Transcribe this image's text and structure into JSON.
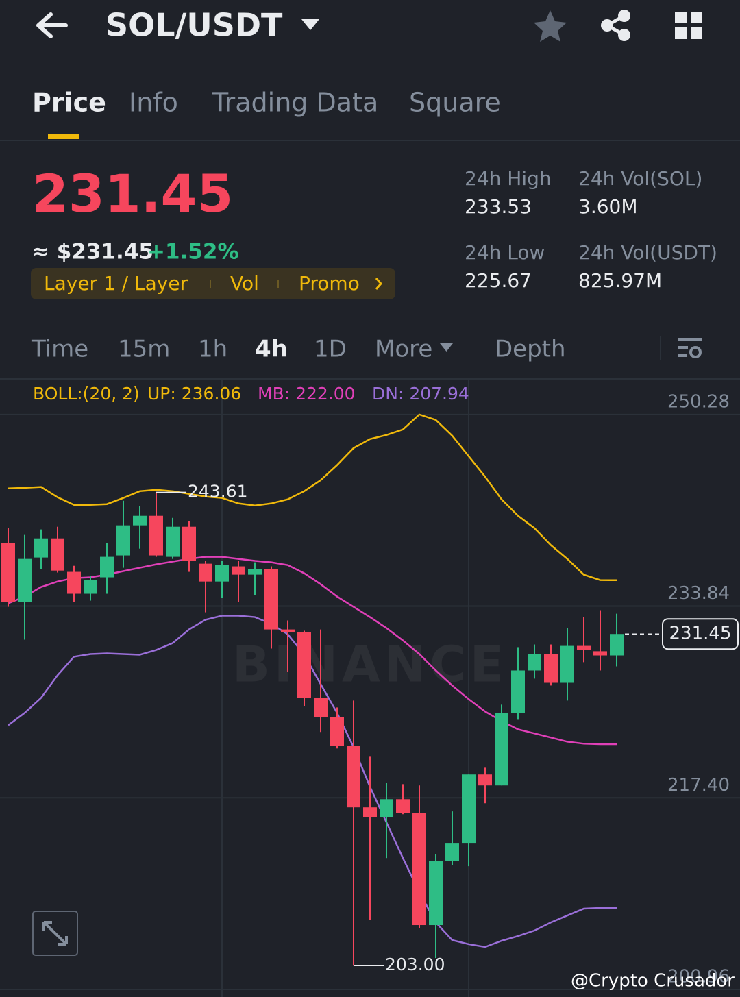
{
  "header": {
    "title": "SOL/USDT"
  },
  "tabs": [
    "Price",
    "Info",
    "Trading Data",
    "Square"
  ],
  "ticker": {
    "price": "231.45",
    "price_approx": "≈ $231.45",
    "change": "+1.52%",
    "tags": [
      "Layer 1 / Layer",
      "Vol",
      "Promo"
    ],
    "stats": [
      {
        "label": "24h High",
        "value": "233.53"
      },
      {
        "label": "24h Vol(SOL)",
        "value": "3.60M"
      },
      {
        "label": "24h Low",
        "value": "225.67"
      },
      {
        "label": "24h Vol(USDT)",
        "value": "825.97M"
      }
    ]
  },
  "intervals": [
    "Time",
    "15m",
    "1h",
    "4h",
    "1D",
    "More",
    "Depth"
  ],
  "chart_data": {
    "type": "candlestick",
    "indicator_labels": [
      {
        "text": "BOLL:(20, 2)",
        "color": "#f0b90b"
      },
      {
        "text": "UP: 236.06",
        "color": "#f0b90b"
      },
      {
        "text": "MB: 222.00",
        "color": "#e040b8"
      },
      {
        "text": "DN: 207.94",
        "color": "#9a6fd8"
      }
    ],
    "ylim": [
      200.31,
      253.27
    ],
    "yticks": [
      250.28,
      233.84,
      {
        "value": 217.4,
        "label": "217.40"
      },
      200.96
    ],
    "candles": {
      "up_color": "#2ebd85",
      "down_color": "#f6465d",
      "open": [
        239.24,
        234.19,
        238.01,
        239.65,
        236.78,
        234.9,
        236.31,
        238.19,
        240.77,
        241.59,
        238.07,
        240.65,
        237.48,
        235.95,
        237.25,
        236.54,
        237.01,
        231.84,
        231.61,
        225.97,
        224.33,
        221.86,
        216.58,
        215.76,
        217.28,
        216.11,
        206.48,
        212.0,
        213.53,
        219.4,
        218.46,
        224.68,
        228.32,
        229.73,
        227.26,
        230.43,
        229.97,
        229.61
      ],
      "high": [
        240.53,
        239.95,
        240.42,
        240.65,
        237.3,
        236.42,
        239.24,
        242.88,
        242.41,
        243.61,
        241.41,
        241.12,
        237.72,
        237.72,
        237.72,
        237.6,
        237.25,
        232.61,
        231.73,
        231.84,
        225.15,
        225.74,
        220.92,
        218.69,
        218.57,
        218.46,
        212.59,
        216.23,
        219.4,
        219.98,
        225.39,
        230.32,
        230.55,
        230.55,
        231.96,
        232.9,
        233.49,
        233.19
      ],
      "low": [
        233.78,
        230.96,
        237.01,
        236.72,
        234.19,
        234.31,
        234.9,
        237.13,
        238.77,
        238.07,
        237.89,
        236.78,
        233.31,
        234.55,
        234.19,
        234.78,
        230.2,
        228.2,
        225.27,
        223.04,
        221.63,
        203.0,
        206.95,
        212.23,
        215.99,
        206.19,
        203.66,
        211.65,
        211.53,
        216.93,
        218.46,
        224.09,
        227.62,
        227.03,
        225.74,
        229.03,
        228.32,
        228.67
      ],
      "close": [
        234.19,
        237.89,
        239.65,
        236.89,
        234.9,
        236.07,
        238.07,
        240.77,
        241.59,
        238.19,
        240.65,
        237.72,
        235.95,
        237.36,
        236.54,
        237.01,
        231.84,
        231.61,
        225.97,
        224.33,
        221.86,
        216.58,
        215.76,
        217.28,
        216.11,
        206.48,
        212.0,
        213.53,
        219.4,
        218.46,
        224.68,
        228.32,
        229.73,
        227.26,
        230.43,
        230.08,
        229.61,
        231.45
      ]
    },
    "bands": [
      {
        "color": "#f0b90b",
        "values": [
          243.94,
          243.99,
          244.06,
          243.18,
          242.53,
          242.53,
          242.59,
          243.12,
          243.7,
          243.82,
          243.7,
          243.47,
          243.24,
          243.12,
          242.65,
          242.47,
          242.65,
          243.0,
          243.7,
          244.64,
          245.94,
          247.4,
          248.17,
          248.52,
          248.99,
          250.28,
          249.81,
          248.46,
          246.7,
          244.94,
          243.0,
          241.59,
          240.53,
          239.07,
          237.89,
          236.54,
          236.07,
          236.06
        ]
      },
      {
        "color": "#e040b8",
        "values": [
          234.08,
          234.66,
          235.48,
          235.95,
          236.25,
          236.31,
          236.54,
          236.84,
          237.13,
          237.42,
          237.66,
          237.89,
          238.07,
          238.07,
          237.89,
          237.72,
          237.6,
          237.36,
          236.66,
          235.72,
          234.66,
          233.78,
          232.9,
          231.96,
          230.9,
          229.73,
          228.32,
          227.03,
          225.86,
          224.8,
          223.98,
          223.27,
          222.92,
          222.57,
          222.21,
          222.04,
          222.0,
          222.0
        ]
      },
      {
        "color": "#9a6fd8",
        "values": [
          223.62,
          224.68,
          225.97,
          227.91,
          229.5,
          229.73,
          229.79,
          229.73,
          229.67,
          230.08,
          230.67,
          231.84,
          232.67,
          233.02,
          233.02,
          232.9,
          232.31,
          231.43,
          229.67,
          227.15,
          224.68,
          221.75,
          218.34,
          215.29,
          212.23,
          209.3,
          206.71,
          205.19,
          204.84,
          204.6,
          205.13,
          205.54,
          206.01,
          206.71,
          207.3,
          207.89,
          207.95,
          207.94
        ]
      }
    ],
    "annotations": {
      "high": "243.61",
      "low": "203.00",
      "last": "231.45"
    },
    "watermark": "BINANCE",
    "credit": "@Crypto Crusador"
  }
}
